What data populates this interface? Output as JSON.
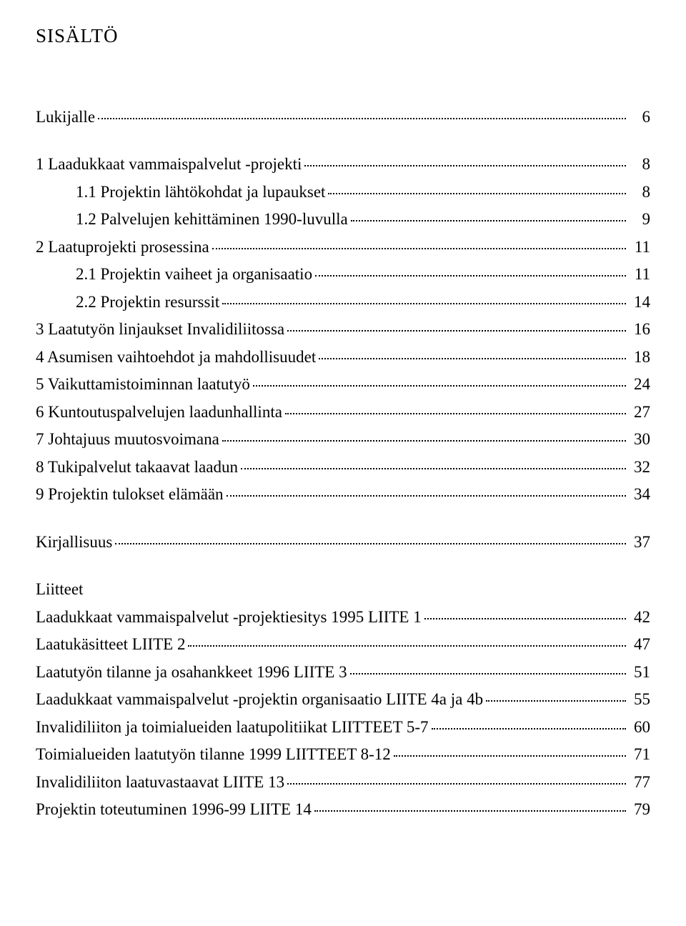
{
  "title": "SISÄLTÖ",
  "entries": [
    {
      "kind": "gap"
    },
    {
      "kind": "entry",
      "indent": 0,
      "label": "Lukijalle",
      "page": "6"
    },
    {
      "kind": "gap"
    },
    {
      "kind": "entry",
      "indent": 0,
      "label": "1 Laadukkaat vammaispalvelut -projekti",
      "page": "8"
    },
    {
      "kind": "entry",
      "indent": 1,
      "label": "1.1 Projektin lähtökohdat ja lupaukset",
      "page": "8"
    },
    {
      "kind": "entry",
      "indent": 1,
      "label": "1.2 Palvelujen kehittäminen 1990-luvulla",
      "page": "9"
    },
    {
      "kind": "entry",
      "indent": 0,
      "label": "2 Laatuprojekti prosessina",
      "page": "11"
    },
    {
      "kind": "entry",
      "indent": 1,
      "label": "2.1 Projektin vaiheet ja organisaatio",
      "page": "11"
    },
    {
      "kind": "entry",
      "indent": 1,
      "label": "2.2 Projektin resurssit",
      "page": "14"
    },
    {
      "kind": "entry",
      "indent": 0,
      "label": "3 Laatutyön linjaukset Invalidiliitossa",
      "page": "16"
    },
    {
      "kind": "entry",
      "indent": 0,
      "label": "4 Asumisen vaihtoehdot ja mahdollisuudet",
      "page": "18"
    },
    {
      "kind": "entry",
      "indent": 0,
      "label": "5 Vaikuttamistoiminnan laatutyö",
      "page": "24"
    },
    {
      "kind": "entry",
      "indent": 0,
      "label": "6 Kuntoutuspalvelujen laadunhallinta",
      "page": "27"
    },
    {
      "kind": "entry",
      "indent": 0,
      "label": "7 Johtajuus muutosvoimana",
      "page": "30"
    },
    {
      "kind": "entry",
      "indent": 0,
      "label": "8 Tukipalvelut takaavat laadun",
      "page": "32"
    },
    {
      "kind": "entry",
      "indent": 0,
      "label": "9 Projektin tulokset elämään",
      "page": "34"
    },
    {
      "kind": "gap"
    },
    {
      "kind": "entry",
      "indent": 0,
      "label": "Kirjallisuus",
      "page": "37"
    },
    {
      "kind": "gap"
    },
    {
      "kind": "heading",
      "label": "Liitteet"
    },
    {
      "kind": "entry",
      "indent": 0,
      "label": "Laadukkaat vammaispalvelut -projektiesitys 1995 LIITE 1",
      "page": "42"
    },
    {
      "kind": "entry",
      "indent": 0,
      "label": "Laatukäsitteet LIITE 2",
      "page": "47"
    },
    {
      "kind": "entry",
      "indent": 0,
      "label": "Laatutyön tilanne ja osahankkeet 1996 LIITE 3",
      "page": "51"
    },
    {
      "kind": "entry",
      "indent": 0,
      "label": "Laadukkaat vammaispalvelut -projektin organisaatio LIITE 4a ja 4b",
      "page": "55"
    },
    {
      "kind": "entry",
      "indent": 0,
      "label": "Invalidiliiton ja toimialueiden laatupolitiikat LIITTEET 5-7",
      "page": "60"
    },
    {
      "kind": "entry",
      "indent": 0,
      "label": "Toimialueiden laatutyön tilanne 1999 LIITTEET 8-12",
      "page": "71"
    },
    {
      "kind": "entry",
      "indent": 0,
      "label": "Invalidiliiton laatuvastaavat LIITE 13",
      "page": "77"
    },
    {
      "kind": "entry",
      "indent": 0,
      "label": "Projektin toteutuminen 1996-99 LIITE 14",
      "page": "79"
    }
  ]
}
